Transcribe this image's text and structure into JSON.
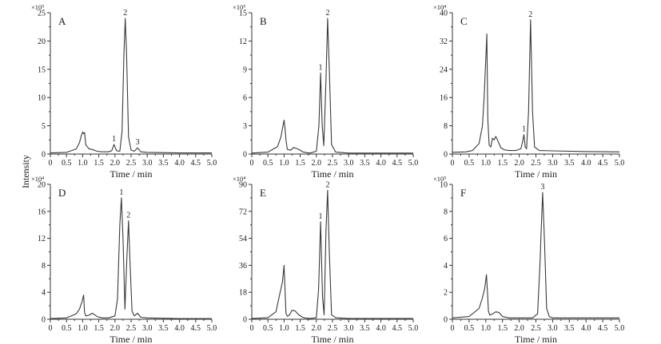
{
  "figure": {
    "ylabel": "Intensity",
    "colors": {
      "axis": "#333333",
      "trace": "#3a3a3a"
    }
  },
  "chart_data": [
    {
      "type": "line",
      "panel": "A",
      "scale": "×10⁵",
      "xlabel": "Time / min",
      "xlim": [
        0,
        5
      ],
      "ylim": [
        0,
        25
      ],
      "xticks": [
        "0",
        "0.5",
        "1.0",
        "1.5",
        "2.0",
        "2.5",
        "3.0",
        "3.5",
        "4.0",
        "4.5",
        "5.0"
      ],
      "yticks": [
        "0",
        "5",
        "10",
        "15",
        "20",
        "25"
      ],
      "peaks": [
        {
          "label": "1",
          "x": 1.97,
          "y": 1.7
        },
        {
          "label": "2",
          "x": 2.32,
          "y": 24.0
        },
        {
          "label": "3",
          "x": 2.7,
          "y": 1.1
        }
      ],
      "x": [
        0,
        0.5,
        0.8,
        0.9,
        0.95,
        1.0,
        1.03,
        1.06,
        1.1,
        1.2,
        1.3,
        1.45,
        1.6,
        1.8,
        1.9,
        1.97,
        2.05,
        2.15,
        2.22,
        2.28,
        2.32,
        2.36,
        2.42,
        2.5,
        2.6,
        2.7,
        2.8,
        3.0,
        4.0,
        5.0
      ],
      "y": [
        0.2,
        0.3,
        0.9,
        2.0,
        3.1,
        3.9,
        3.6,
        3.8,
        1.6,
        0.9,
        0.8,
        0.5,
        0.4,
        0.4,
        0.6,
        1.7,
        0.6,
        0.5,
        4.0,
        18.0,
        24.0,
        18.0,
        3.0,
        0.7,
        0.5,
        1.1,
        0.4,
        0.3,
        0.2,
        0.2
      ]
    },
    {
      "type": "line",
      "panel": "B",
      "scale": "×10⁵",
      "xlabel": "Time / min",
      "xlim": [
        0,
        5
      ],
      "ylim": [
        0,
        15
      ],
      "xticks": [
        "0",
        "0.5",
        "1.0",
        "1.5",
        "2.0",
        "2.5",
        "3.0",
        "3.5",
        "4.0",
        "4.5",
        "5.0"
      ],
      "yticks": [
        "0",
        "3",
        "6",
        "9",
        "12",
        "15"
      ],
      "peaks": [
        {
          "label": "1",
          "x": 2.13,
          "y": 8.6
        },
        {
          "label": "2",
          "x": 2.35,
          "y": 14.4
        }
      ],
      "x": [
        0,
        0.5,
        0.8,
        0.9,
        0.95,
        1.0,
        1.03,
        1.06,
        1.1,
        1.2,
        1.3,
        1.45,
        1.6,
        1.8,
        2.0,
        2.08,
        2.13,
        2.18,
        2.23,
        2.3,
        2.35,
        2.4,
        2.47,
        2.6,
        3.0,
        4.0,
        5.0
      ],
      "y": [
        0.1,
        0.2,
        0.8,
        1.8,
        2.7,
        3.6,
        2.7,
        1.5,
        0.5,
        0.4,
        0.7,
        0.5,
        0.2,
        0.1,
        0.3,
        3.0,
        8.6,
        3.0,
        0.9,
        8.0,
        14.4,
        9.0,
        1.0,
        0.2,
        0.1,
        0.1,
        0.1
      ]
    },
    {
      "type": "line",
      "panel": "C",
      "scale": "×10⁴",
      "xlabel": "Time / min",
      "xlim": [
        0,
        5
      ],
      "ylim": [
        0,
        40
      ],
      "xticks": [
        "0",
        "0.5",
        "1.0",
        "1.5",
        "2.0",
        "2.5",
        "3.0",
        "3.5",
        "4.0",
        "4.5",
        "5.0"
      ],
      "yticks": [
        "0",
        "8",
        "16",
        "24",
        "32",
        "40"
      ],
      "peaks": [
        {
          "label": "1",
          "x": 2.14,
          "y": 5.5
        },
        {
          "label": "2",
          "x": 2.34,
          "y": 38.0
        }
      ],
      "x": [
        0,
        0.4,
        0.6,
        0.8,
        0.9,
        0.95,
        1.0,
        1.03,
        1.06,
        1.1,
        1.15,
        1.2,
        1.25,
        1.3,
        1.35,
        1.45,
        1.55,
        1.7,
        1.9,
        2.05,
        2.1,
        2.14,
        2.18,
        2.22,
        2.28,
        2.34,
        2.4,
        2.46,
        2.6,
        3.0,
        4.0,
        5.0
      ],
      "y": [
        0.5,
        0.6,
        1.0,
        3.0,
        8.0,
        16.0,
        27.0,
        34.0,
        10.0,
        2.5,
        2.0,
        4.5,
        4.0,
        5.0,
        4.0,
        1.8,
        1.2,
        1.0,
        1.0,
        1.5,
        3.5,
        5.5,
        2.0,
        1.5,
        12.0,
        38.0,
        12.0,
        2.0,
        1.0,
        0.9,
        0.7,
        0.6
      ]
    },
    {
      "type": "line",
      "panel": "D",
      "scale": "×10⁴",
      "xlabel": "Time / min",
      "xlim": [
        0,
        5
      ],
      "ylim": [
        0,
        20
      ],
      "xticks": [
        "0",
        "0.5",
        "1.0",
        "1.5",
        "2.0",
        "2.5",
        "3.0",
        "3.5",
        "4.0",
        "4.5",
        "5.0"
      ],
      "yticks": [
        "0",
        "4",
        "8",
        "12",
        "16",
        "20"
      ],
      "peaks": [
        {
          "label": "1",
          "x": 2.2,
          "y": 18.0
        },
        {
          "label": "2",
          "x": 2.42,
          "y": 14.6
        }
      ],
      "x": [
        0,
        0.5,
        0.8,
        0.9,
        0.98,
        1.03,
        1.06,
        1.1,
        1.2,
        1.3,
        1.45,
        1.6,
        1.8,
        2.0,
        2.08,
        2.15,
        2.2,
        2.25,
        2.31,
        2.37,
        2.42,
        2.47,
        2.53,
        2.6,
        2.7,
        2.8,
        3.0,
        4.0,
        5.0
      ],
      "y": [
        0.1,
        0.2,
        0.8,
        1.5,
        2.6,
        3.6,
        1.0,
        0.5,
        0.6,
        0.9,
        0.4,
        0.2,
        0.2,
        0.5,
        3.0,
        14.0,
        18.0,
        12.0,
        1.5,
        9.0,
        14.6,
        8.0,
        1.2,
        0.5,
        0.9,
        0.3,
        0.2,
        0.1,
        0.1
      ]
    },
    {
      "type": "line",
      "panel": "E",
      "scale": "×10⁴",
      "xlabel": "Time / min",
      "xlim": [
        0,
        5
      ],
      "ylim": [
        0,
        90
      ],
      "xticks": [
        "0",
        "0.5",
        "1.0",
        "1.5",
        "2.0",
        "2.5",
        "3.0",
        "3.5",
        "4.0",
        "4.5",
        "5.0"
      ],
      "yticks": [
        "0",
        "18",
        "36",
        "54",
        "72",
        "90"
      ],
      "peaks": [
        {
          "label": "1",
          "x": 2.13,
          "y": 65.0
        },
        {
          "label": "2",
          "x": 2.35,
          "y": 86.0
        }
      ],
      "x": [
        0,
        0.5,
        0.75,
        0.85,
        0.95,
        1.0,
        1.03,
        1.06,
        1.1,
        1.15,
        1.25,
        1.35,
        1.45,
        1.6,
        1.8,
        2.0,
        2.07,
        2.13,
        2.19,
        2.24,
        2.3,
        2.35,
        2.4,
        2.47,
        2.6,
        3.0,
        4.0,
        5.0
      ],
      "y": [
        0.5,
        1.0,
        5.0,
        15.0,
        25.0,
        36.0,
        20.0,
        4.0,
        2.0,
        2.5,
        6.0,
        5.5,
        3.0,
        1.0,
        0.5,
        1.0,
        20.0,
        65.0,
        15.0,
        3.0,
        60.0,
        86.0,
        45.0,
        3.0,
        1.0,
        0.5,
        0.5,
        0.5
      ]
    },
    {
      "type": "line",
      "panel": "F",
      "scale": "×10⁵",
      "xlabel": "Time / min",
      "xlim": [
        0,
        5
      ],
      "ylim": [
        0,
        10
      ],
      "xticks": [
        "0",
        "0.5",
        "1.0",
        "1.5",
        "2.0",
        "2.5",
        "3.0",
        "3.5",
        "4.0",
        "4.5",
        "5.0"
      ],
      "yticks": [
        "0",
        "2",
        "4",
        "6",
        "8",
        "10"
      ],
      "peaks": [
        {
          "label": "3",
          "x": 2.7,
          "y": 9.4
        }
      ],
      "x": [
        0,
        0.5,
        0.8,
        0.9,
        0.97,
        1.02,
        1.05,
        1.08,
        1.12,
        1.2,
        1.3,
        1.4,
        1.5,
        1.7,
        2.0,
        2.4,
        2.55,
        2.62,
        2.7,
        2.76,
        2.82,
        2.9,
        3.0,
        4.0,
        5.0
      ],
      "y": [
        0.1,
        0.2,
        0.8,
        1.6,
        2.3,
        3.3,
        2.0,
        0.6,
        0.3,
        0.4,
        0.55,
        0.5,
        0.2,
        0.1,
        0.1,
        0.1,
        0.4,
        4.0,
        9.4,
        5.5,
        0.8,
        0.2,
        0.1,
        0.1,
        0.1
      ]
    }
  ]
}
